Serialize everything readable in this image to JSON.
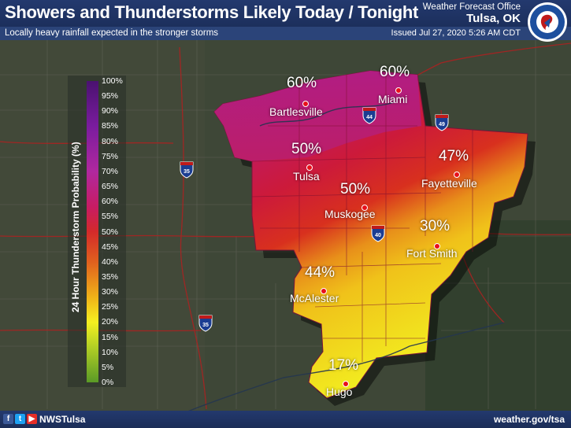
{
  "header": {
    "title": "Showers and Thunderstorms Likely Today / Tonight",
    "subtitle": "Locally heavy rainfall expected in the stronger storms",
    "office_line1": "Weather Forecast Office",
    "office_line2": "Tulsa, OK",
    "issued": "Issued Jul 27, 2020 5:26 AM CDT"
  },
  "legend": {
    "title": "24 Hour Thunderstorm Probability (%)",
    "ticks": [
      "100%",
      "95%",
      "90%",
      "85%",
      "80%",
      "75%",
      "70%",
      "65%",
      "60%",
      "55%",
      "50%",
      "45%",
      "40%",
      "35%",
      "30%",
      "25%",
      "20%",
      "15%",
      "10%",
      "5%",
      "0%"
    ]
  },
  "cities": [
    {
      "name": "Bartlesville",
      "pct": "60%"
    },
    {
      "name": "Miami",
      "pct": "60%"
    },
    {
      "name": "Tulsa",
      "pct": "50%"
    },
    {
      "name": "Fayetteville",
      "pct": "47%"
    },
    {
      "name": "Muskogee",
      "pct": "50%"
    },
    {
      "name": "Fort Smith",
      "pct": "30%"
    },
    {
      "name": "McAlester",
      "pct": "44%"
    },
    {
      "name": "Hugo",
      "pct": "17%"
    }
  ],
  "highways": [
    "35",
    "44",
    "49",
    "35",
    "40"
  ],
  "footer": {
    "handle": "NWSTulsa",
    "website": "weather.gov/tsa",
    "social_icons": [
      "facebook-icon",
      "twitter-icon",
      "youtube-icon"
    ]
  },
  "colors": {
    "header_bg": "#23396e",
    "city_dot": "#e8101a",
    "prob_60": "#b8207c",
    "prob_50": "#cc1a3a",
    "prob_45": "#d8301e",
    "prob_30": "#f0c21a",
    "prob_17": "#f2f020"
  }
}
